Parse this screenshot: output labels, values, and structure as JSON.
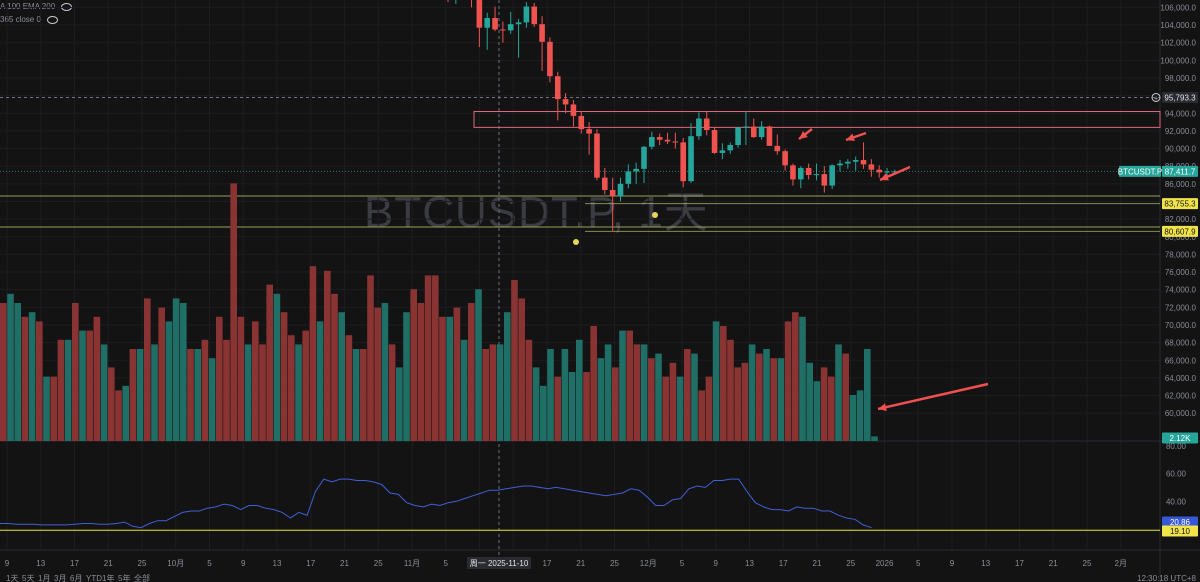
{
  "legend": {
    "ma_line": "A 100 EMA 200",
    "rsi_line": "365 close 0"
  },
  "watermark": "BTCUSDT.P, 1天",
  "time_marker": "周一 2025-11-10",
  "colors": {
    "up": "#26a69a",
    "down": "#ef5350",
    "vol_up": "#1f6f66",
    "vol_down": "#8a3333",
    "rsi": "#3f5fd6",
    "rsi_level": "#e5e52a",
    "zone": "#e0677a",
    "support": "#b7c36a"
  },
  "chart_data": [
    {
      "type": "candlestick",
      "title": "BTCUSDT.P, 1天",
      "y_ticks": [
        "106,000.0",
        "104,000.0",
        "102,000.0",
        "100,000.0",
        "98,000.0",
        "96,000.0",
        "94,000.0",
        "92,000.0",
        "90,000.0",
        "88,000.0",
        "86,000.0",
        "84,000.0",
        "82,000.0",
        "80,000.0",
        "78,000.0",
        "76,000.0",
        "74,000.0",
        "72,000.0",
        "70,000.0",
        "68,000.0",
        "66,000.0",
        "64,000.0",
        "62,000.0",
        "60,000.0"
      ],
      "ylim": [
        59000,
        106500
      ],
      "crosshair_price": "95,793.3",
      "last_price": "87,411.7",
      "series_label": "BTCUSDT.P",
      "levels": [
        {
          "label": "83,755.3",
          "value": 83755.3
        },
        {
          "label": "80,607.9",
          "value": 80607.9
        }
      ],
      "resistance_zone": [
        92400,
        94200
      ],
      "candles_ohlc": [
        [
          107400,
          107600,
          106600,
          107000
        ],
        [
          107000,
          107800,
          106400,
          107600
        ],
        [
          107600,
          108000,
          106900,
          107200
        ],
        [
          107200,
          108200,
          106000,
          106900
        ],
        [
          106900,
          107200,
          101500,
          103700
        ],
        [
          103700,
          105400,
          101200,
          104800
        ],
        [
          104800,
          106100,
          103300,
          103500
        ],
        [
          103500,
          104400,
          102000,
          103400
        ],
        [
          103400,
          105500,
          103000,
          104100
        ],
        [
          104100,
          104700,
          100300,
          104300
        ],
        [
          104300,
          106600,
          103700,
          106100
        ],
        [
          106100,
          106500,
          103800,
          104100
        ],
        [
          104100,
          105000,
          98800,
          102100
        ],
        [
          102100,
          102600,
          97500,
          98200
        ],
        [
          98200,
          98700,
          93200,
          95600
        ],
        [
          95600,
          96300,
          94000,
          95000
        ],
        [
          95000,
          95500,
          92500,
          93700
        ],
        [
          93700,
          94200,
          91700,
          92200
        ],
        [
          92200,
          93000,
          89300,
          91700
        ],
        [
          91700,
          92200,
          86400,
          86700
        ],
        [
          86700,
          87800,
          84800,
          85300
        ],
        [
          85300,
          86700,
          80600,
          84600
        ],
        [
          84600,
          86700,
          84000,
          86000
        ],
        [
          86000,
          88200,
          85500,
          87400
        ],
        [
          87400,
          88400,
          86000,
          87700
        ],
        [
          87700,
          90300,
          86100,
          90200
        ],
        [
          90200,
          91900,
          89900,
          91300
        ],
        [
          91300,
          91700,
          90400,
          91000
        ],
        [
          91000,
          91800,
          90500,
          90800
        ],
        [
          90800,
          91800,
          90000,
          90700
        ],
        [
          90700,
          91200,
          85600,
          86300
        ],
        [
          86300,
          92900,
          86100,
          91400
        ],
        [
          91400,
          94100,
          91000,
          93400
        ],
        [
          93400,
          94200,
          91500,
          92100
        ],
        [
          92100,
          92400,
          89400,
          89500
        ],
        [
          89500,
          90600,
          88800,
          89800
        ],
        [
          89800,
          90700,
          89400,
          90400
        ],
        [
          90400,
          92400,
          90100,
          92400
        ],
        [
          92400,
          94200,
          90400,
          92500
        ],
        [
          92500,
          93400,
          91200,
          91300
        ],
        [
          91300,
          93100,
          91000,
          92500
        ],
        [
          92500,
          92600,
          90300,
          90300
        ],
        [
          90300,
          91600,
          89300,
          89700
        ],
        [
          89700,
          89900,
          87500,
          88100
        ],
        [
          88100,
          88300,
          85800,
          86500
        ],
        [
          86500,
          88000,
          85500,
          87800
        ],
        [
          87800,
          88300,
          86500,
          87000
        ],
        [
          87000,
          88300,
          86400,
          87100
        ],
        [
          87100,
          88000,
          85000,
          85800
        ],
        [
          85800,
          88200,
          85400,
          88100
        ],
        [
          88100,
          88700,
          87400,
          88300
        ],
        [
          88300,
          88800,
          87700,
          88500
        ],
        [
          88500,
          89100,
          87500,
          88700
        ],
        [
          88700,
          90700,
          87700,
          88200
        ],
        [
          88200,
          88800,
          86800,
          87600
        ],
        [
          87600,
          88100,
          86700,
          87300
        ],
        [
          87300,
          87800,
          86500,
          87400
        ],
        [
          87400,
          87600,
          87200,
          87412
        ]
      ]
    },
    {
      "type": "bar",
      "title": "Volume",
      "last_volume": "2.12K",
      "values_relative": [
        30,
        32,
        30,
        27,
        28,
        26,
        14,
        14,
        22,
        22,
        30,
        24,
        24,
        27,
        21,
        16,
        11,
        12,
        20,
        20,
        31,
        21,
        29,
        26,
        31,
        30,
        20,
        20,
        22,
        18,
        27,
        22,
        56,
        27,
        21,
        26,
        21,
        34,
        32,
        28,
        23,
        21,
        24,
        38,
        26,
        37,
        32,
        28,
        23,
        20,
        20,
        36,
        29,
        30,
        21,
        16,
        28,
        33,
        30,
        36,
        36,
        27,
        27,
        29,
        22,
        30,
        33,
        20,
        21,
        21,
        28,
        35,
        31,
        22,
        16,
        12,
        20,
        14,
        20,
        15,
        22,
        15,
        25,
        18,
        21,
        16,
        24,
        24,
        21,
        21,
        18,
        19,
        14,
        17,
        14,
        20,
        19,
        11,
        14,
        26,
        25,
        22,
        16,
        17,
        21,
        19,
        20,
        18,
        18,
        26,
        28,
        27,
        17,
        13,
        16,
        14,
        21,
        19,
        10,
        11,
        20,
        1
      ],
      "values_is_up": [
        false,
        true,
        true,
        false,
        true,
        false,
        true,
        false,
        false,
        true,
        false,
        true,
        false,
        false,
        true,
        false,
        false,
        true,
        false,
        true,
        false,
        true,
        false,
        true,
        true,
        true,
        false,
        true,
        false,
        true,
        false,
        false,
        false,
        false,
        true,
        false,
        false,
        false,
        true,
        false,
        false,
        true,
        false,
        false,
        true,
        false,
        false,
        true,
        false,
        true,
        false,
        false,
        false,
        true,
        false,
        true,
        true,
        false,
        false,
        false,
        false,
        false,
        true,
        false,
        true,
        false,
        true,
        false,
        false,
        true,
        true,
        false,
        false,
        false,
        true,
        true,
        true,
        false,
        true,
        true,
        true,
        false,
        false,
        true,
        true,
        false,
        true,
        false,
        false,
        true,
        false,
        true,
        false,
        false,
        true,
        false,
        true,
        false,
        false,
        true,
        false,
        false,
        false,
        false,
        true,
        false,
        true,
        false,
        true,
        false,
        false,
        true,
        true,
        true,
        false,
        false,
        true,
        false,
        true,
        true,
        true,
        true
      ]
    },
    {
      "type": "line",
      "title": "RSI",
      "y_ticks": [
        "80.00",
        "60.00",
        "40.00",
        "20.00"
      ],
      "ylim": [
        15,
        82
      ],
      "last_value": "20.86",
      "level_value": "19.10",
      "level": 19.1,
      "values": [
        24,
        24,
        23.5,
        23.5,
        23.5,
        23,
        23,
        23,
        23,
        23.5,
        24,
        24,
        23.5,
        23.5,
        24,
        25,
        22,
        21,
        24,
        26,
        26,
        29,
        32,
        33,
        33,
        35,
        36,
        38,
        37,
        34,
        37,
        37,
        35,
        34,
        32,
        28,
        32,
        30,
        47,
        56,
        54,
        56,
        56,
        55,
        55,
        54,
        52,
        46,
        45,
        39,
        37,
        36,
        38,
        37,
        39,
        40,
        42,
        44,
        46,
        48,
        48,
        49,
        50,
        51,
        51,
        50,
        49,
        50,
        49,
        48,
        47,
        46,
        45,
        44,
        45,
        46,
        49,
        48,
        43,
        37,
        37,
        41,
        42,
        49,
        51,
        50,
        55,
        55,
        56,
        56,
        47,
        39,
        36,
        34,
        34,
        33,
        36,
        35,
        35,
        33,
        33,
        30,
        28,
        27,
        23,
        21
      ]
    }
  ],
  "x_ticks": [
    "9",
    "13",
    "17",
    "21",
    "25",
    "10月",
    "5",
    "9",
    "13",
    "17",
    "21",
    "25",
    "11月",
    "5",
    "9",
    "13",
    "17",
    "21",
    "25",
    "12月",
    "5",
    "9",
    "13",
    "17",
    "21",
    "25",
    "2026",
    "5",
    "9",
    "13",
    "17",
    "21",
    "25",
    "2月"
  ],
  "footer": {
    "timeframes": [
      "1天",
      "5天",
      "1月",
      "3月",
      "6月",
      "YTD",
      "1年",
      "5年",
      "全部"
    ],
    "clock": "12:30:18 UTC+8"
  }
}
